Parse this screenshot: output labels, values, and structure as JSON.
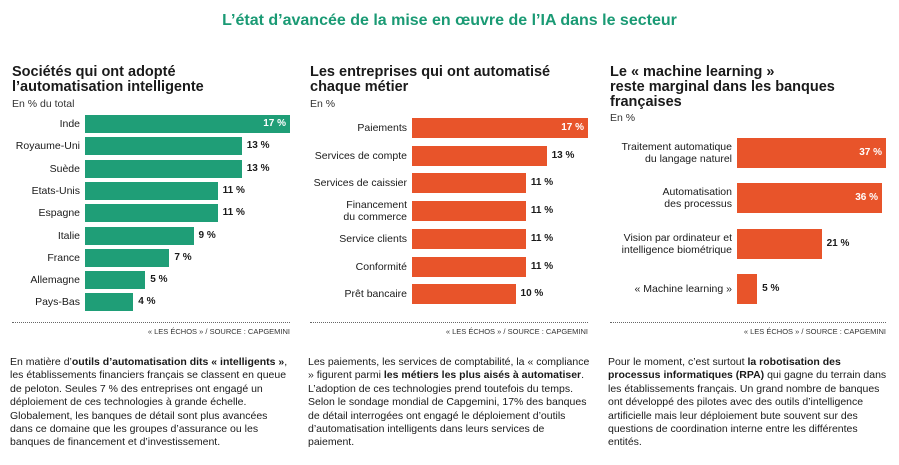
{
  "title": "L’état d’avancée de la mise en œuvre de l’IA dans le secteur",
  "chart_data": [
    {
      "type": "hbar",
      "title": "Sociétés qui ont adopté\nl’automatisation intelligente",
      "subtitle": "En % du total",
      "categories": [
        "Inde",
        "Royaume-Uni",
        "Suède",
        "Etats-Unis",
        "Espagne",
        "Italie",
        "France",
        "Allemagne",
        "Pays-Bas"
      ],
      "values": [
        17,
        13,
        13,
        11,
        11,
        9,
        7,
        5,
        4
      ],
      "value_labels": [
        "17 %",
        "13 %",
        "13 %",
        "11 %",
        "11 %",
        "9 %",
        "7 %",
        "5 %",
        "4 %"
      ],
      "xlim": [
        0,
        17
      ],
      "color": "#1f9e77",
      "source": "« LES ÉCHOS » / SOURCE : CAPGEMINI"
    },
    {
      "type": "hbar",
      "title": "Les entreprises qui ont automatisé\nchaque métier",
      "subtitle": "En %",
      "categories": [
        "Paiements",
        "Services de compte",
        "Services de caissier",
        "Financement\ndu commerce",
        "Service clients",
        "Conformité",
        "Prêt bancaire"
      ],
      "values": [
        17,
        13,
        11,
        11,
        11,
        11,
        10
      ],
      "value_labels": [
        "17 %",
        "13 %",
        "11 %",
        "11 %",
        "11 %",
        "11 %",
        "10 %"
      ],
      "xlim": [
        0,
        17
      ],
      "color": "#e8542a",
      "source": "« LES ÉCHOS » / SOURCE : CAPGEMINI"
    },
    {
      "type": "hbar",
      "title": "Le « machine learning »\nreste marginal dans les banques\nfrançaises",
      "subtitle": "En %",
      "categories": [
        "Traitement automatique\ndu langage naturel",
        "Automatisation\ndes processus",
        "Vision par ordinateur et\nintelligence biométrique",
        "« Machine learning »"
      ],
      "values": [
        37,
        36,
        21,
        5
      ],
      "value_labels": [
        "37 %",
        "36 %",
        "21 %",
        "5 %"
      ],
      "xlim": [
        0,
        37
      ],
      "color": "#e8542a",
      "source": "« LES ÉCHOS » / SOURCE : CAPGEMINI"
    }
  ],
  "paragraphs": [
    [
      {
        "text": "En matière d’",
        "bold": false
      },
      {
        "text": "outils d’automatisation dits « intelligents »",
        "bold": true
      },
      {
        "text": ", les établissements financiers français se classent en queue de peloton. Seules 7 % des entreprises ont engagé un déploiement de ces technologies à grande échelle. Globalement, les banques de détail sont plus avancées dans ce domaine que les groupes d’assurance ou les banques de financement et d’investissement.",
        "bold": false
      }
    ],
    [
      {
        "text": "Les paiements, les services de comptabilité, la « compliance » figurent parmi ",
        "bold": false
      },
      {
        "text": "les métiers les plus aisés à automatiser",
        "bold": true
      },
      {
        "text": ". L’adoption de ces technologies prend toutefois du temps. Selon le sondage mondial de Capgemini, 17% des banques de détail interrogées ont engagé le déploiement d’outils d’automatisation intelligents dans leurs services de paiement.",
        "bold": false
      }
    ],
    [
      {
        "text": "Pour le moment, c’est surtout ",
        "bold": false
      },
      {
        "text": "la robotisation des processus informatiques (RPA)",
        "bold": true
      },
      {
        "text": " qui gagne du terrain dans les établissements français. Un grand nombre de banques ont développé des pilotes avec des outils d’intelligence artificielle mais leur déploiement bute souvent sur des questions de coordination interne entre les différentes entités.",
        "bold": false
      }
    ]
  ]
}
